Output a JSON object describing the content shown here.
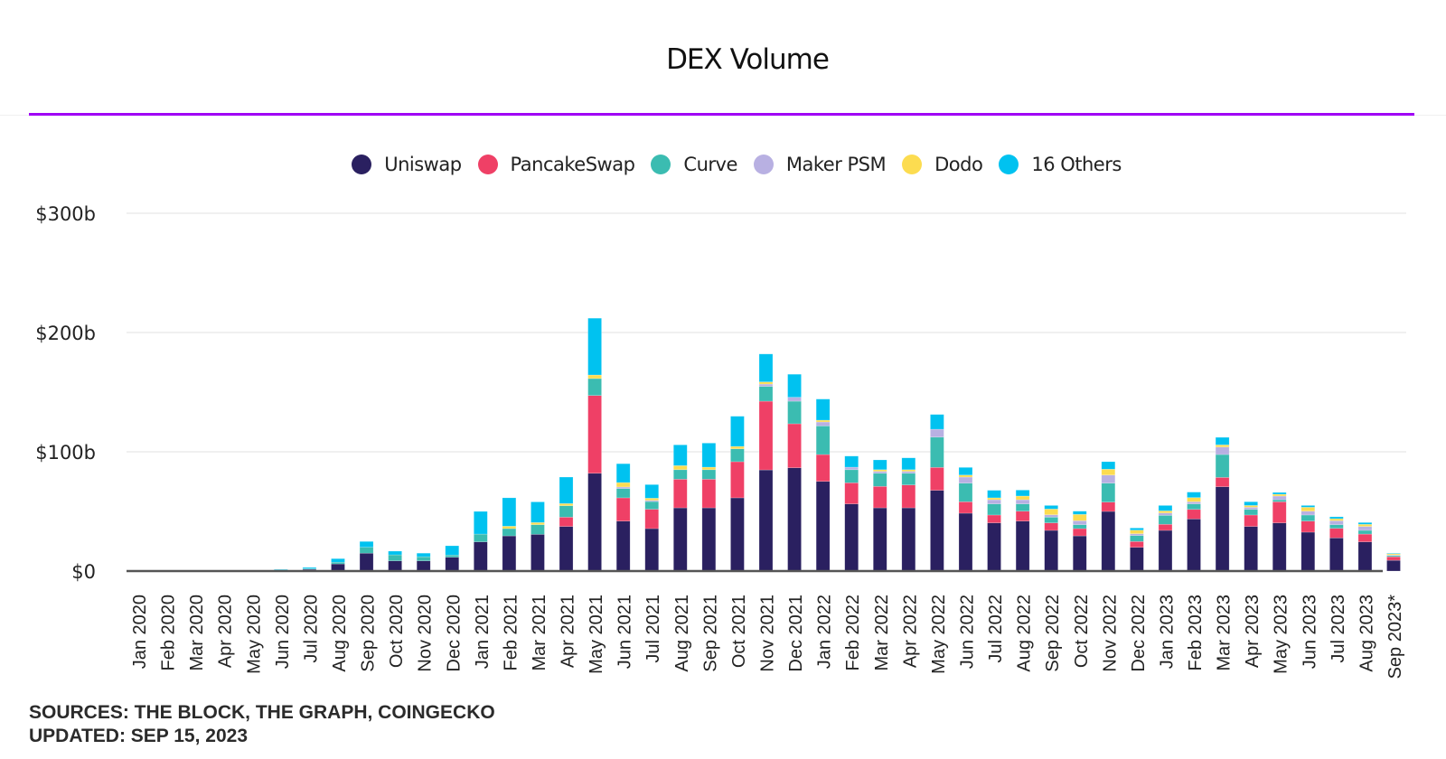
{
  "chart_data": {
    "type": "bar",
    "stacked": true,
    "title": "DEX Volume",
    "xlabel": "",
    "ylabel": "",
    "ylim": [
      0,
      300
    ],
    "yticks": [
      {
        "value": 0,
        "label": "$0"
      },
      {
        "value": 100,
        "label": "$100b"
      },
      {
        "value": 200,
        "label": "$200b"
      },
      {
        "value": 300,
        "label": "$300b"
      }
    ],
    "grid": true,
    "legend_position": "top-center",
    "categories": [
      "Jan 2020",
      "Feb 2020",
      "Mar 2020",
      "Apr 2020",
      "May 2020",
      "Jun 2020",
      "Jul 2020",
      "Aug 2020",
      "Sep 2020",
      "Oct 2020",
      "Nov 2020",
      "Dec 2020",
      "Jan 2021",
      "Feb 2021",
      "Mar 2021",
      "Apr 2021",
      "May 2021",
      "Jun 2021",
      "Jul 2021",
      "Aug 2021",
      "Sep 2021",
      "Oct 2021",
      "Nov 2021",
      "Dec 2021",
      "Jan 2022",
      "Feb 2022",
      "Mar 2022",
      "Apr 2022",
      "May 2022",
      "Jun 2022",
      "Jul 2022",
      "Aug 2022",
      "Sep 2022",
      "Oct 2022",
      "Nov 2022",
      "Dec 2022",
      "Jan 2023",
      "Feb 2023",
      "Mar 2023",
      "Apr 2023",
      "May 2023",
      "Jun 2023",
      "Jul 2023",
      "Aug 2023",
      "Sep 2023*"
    ],
    "series": [
      {
        "name": "Uniswap",
        "color": "#2a2060",
        "values": [
          0,
          0,
          0,
          0,
          0.3,
          0.8,
          1.5,
          6,
          15,
          8.6,
          8.6,
          11.6,
          24.5,
          29.5,
          30.8,
          37.4,
          82,
          41.9,
          35.6,
          53,
          53,
          61.4,
          84.8,
          86.6,
          75.2,
          56.3,
          53,
          53,
          67.7,
          48.5,
          40.4,
          41.9,
          34.1,
          29.5,
          50,
          19.9,
          34.1,
          43.7,
          70.7,
          37.4,
          40.4,
          32.6,
          27.8,
          24.5,
          9
        ]
      },
      {
        "name": "PancakeSwap",
        "color": "#ef4066",
        "values": [
          0,
          0,
          0,
          0,
          0,
          0,
          0,
          0,
          0,
          0,
          0,
          0,
          0,
          0,
          0,
          7.8,
          65.2,
          19.5,
          16.2,
          24,
          24,
          30.3,
          57.6,
          36.9,
          22.5,
          17.7,
          18,
          19.2,
          19.2,
          9.6,
          6.6,
          8.3,
          6.3,
          6.1,
          7.8,
          4.9,
          5.1,
          8,
          7.8,
          9.6,
          17.7,
          9.3,
          8,
          6.5,
          3
        ]
      },
      {
        "name": "Curve",
        "color": "#3bbcb1",
        "values": [
          0,
          0,
          0,
          0,
          0,
          0.3,
          0.5,
          1.4,
          5,
          5,
          3.4,
          1.8,
          6.5,
          6.1,
          8.1,
          9.6,
          14.2,
          7.8,
          6.5,
          8,
          8,
          10.8,
          12.4,
          18.9,
          24,
          11,
          11,
          9.8,
          25.4,
          15.6,
          9.3,
          6.1,
          4.8,
          3.3,
          15.9,
          5,
          7.5,
          4.6,
          19.2,
          4.7,
          1.7,
          5.1,
          3.1,
          3.1,
          1
        ]
      },
      {
        "name": "Maker PSM",
        "color": "#b8b0e2",
        "values": [
          0,
          0,
          0,
          0,
          0,
          0,
          0,
          0,
          0,
          0,
          0,
          0,
          0,
          0,
          0,
          0,
          0,
          1.3,
          1,
          0,
          0,
          0,
          2,
          3.3,
          3.3,
          2.1,
          1.6,
          1.6,
          6.6,
          5.1,
          3.5,
          3.5,
          2,
          3.3,
          6.8,
          1.5,
          2,
          1.8,
          6.3,
          1.8,
          3.1,
          3.2,
          3.3,
          3.3,
          0.5
        ]
      },
      {
        "name": "Dodo",
        "color": "#fcdc50",
        "values": [
          0,
          0,
          0,
          0,
          0,
          0,
          0,
          0,
          0,
          0,
          0,
          0,
          0,
          2,
          1.8,
          1.8,
          3,
          3.7,
          1.8,
          3.4,
          2.1,
          2,
          1.8,
          0,
          1.5,
          0,
          1.4,
          1.4,
          0,
          1.7,
          1.6,
          3.1,
          4.8,
          5.3,
          4.9,
          3,
          1.8,
          3.5,
          1.8,
          1.5,
          1.5,
          3.3,
          1.7,
          1.8,
          1
        ]
      },
      {
        "name": "16 Others",
        "color": "#00c2f0",
        "values": [
          0,
          0,
          0,
          0,
          0.2,
          0.4,
          1,
          3,
          4.8,
          3.1,
          3,
          7.8,
          19,
          23.8,
          17.3,
          22.2,
          47.6,
          15.8,
          11.4,
          17.4,
          20.2,
          25.3,
          23.4,
          19.3,
          17.7,
          9.3,
          8.2,
          9.9,
          12.4,
          6.4,
          6.3,
          5,
          3,
          2.7,
          6.3,
          1.8,
          4.5,
          4.6,
          6.3,
          3.1,
          1.5,
          1.5,
          1.6,
          1.5,
          0.5
        ]
      }
    ]
  },
  "footer": {
    "sources": "SOURCES: THE BLOCK, THE GRAPH, COINGECKO",
    "updated": "UPDATED: SEP 15, 2023"
  },
  "colors": {
    "divider": "#a000f5",
    "axis": "#555555",
    "grid": "#ececec"
  }
}
